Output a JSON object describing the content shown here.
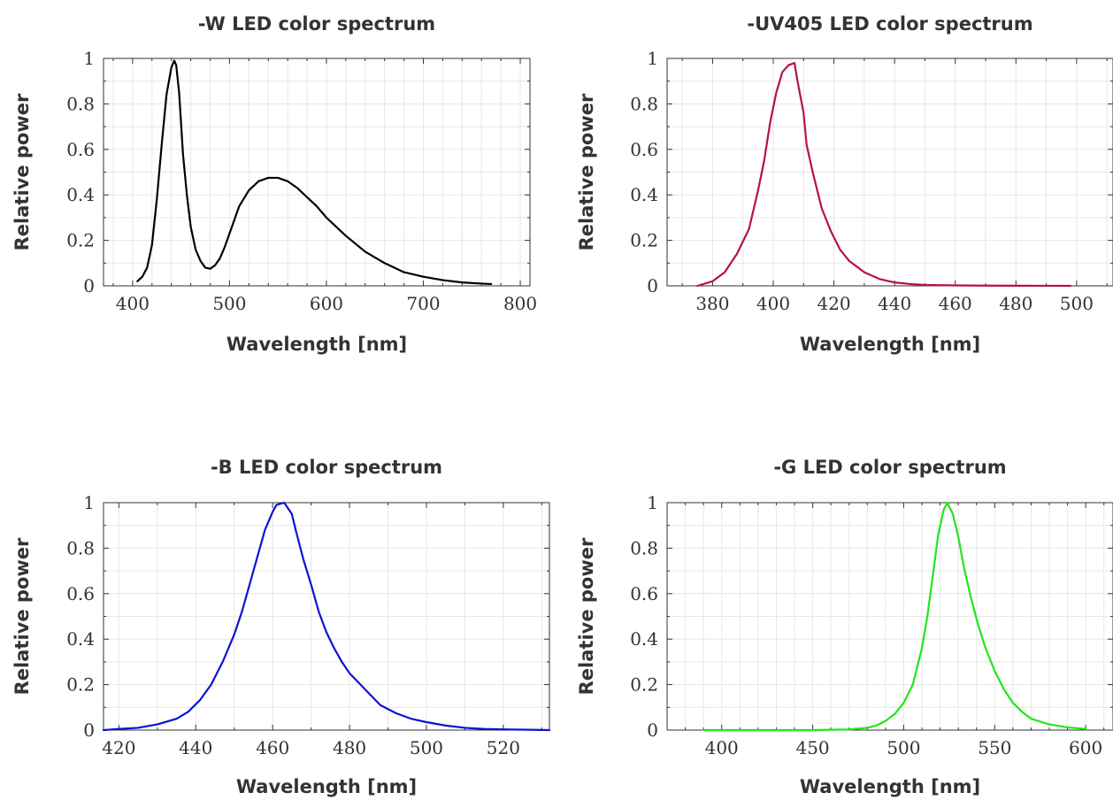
{
  "chart_data": [
    {
      "type": "line",
      "title": "-W LED color spectrum",
      "xlabel": "Wavelength [nm]",
      "ylabel": "Relative power",
      "xlim": [
        370,
        810
      ],
      "ylim": [
        0,
        1
      ],
      "xticks": [
        400,
        500,
        600,
        700,
        800
      ],
      "xtick_labels": [
        "400",
        "500",
        "600",
        "700",
        "800"
      ],
      "yticks": [
        0,
        0.2,
        0.4,
        0.6,
        0.8,
        1
      ],
      "ytick_labels": [
        "0",
        "0.2",
        "0.4",
        "0.6",
        "0.8",
        "1"
      ],
      "x_minor_step": 20,
      "y_minor_step": 0.1,
      "grid": true,
      "legend": "none",
      "color": "#000000",
      "series": [
        {
          "x": [
            405,
            410,
            415,
            420,
            425,
            430,
            435,
            440,
            443,
            445,
            448,
            452,
            456,
            460,
            465,
            470,
            475,
            480,
            485,
            490,
            495,
            500,
            510,
            520,
            530,
            540,
            550,
            560,
            570,
            580,
            590,
            600,
            620,
            640,
            660,
            680,
            700,
            720,
            740,
            760,
            770
          ],
          "y": [
            0.02,
            0.04,
            0.08,
            0.18,
            0.38,
            0.62,
            0.84,
            0.96,
            0.99,
            0.97,
            0.85,
            0.58,
            0.4,
            0.26,
            0.16,
            0.11,
            0.08,
            0.075,
            0.09,
            0.12,
            0.17,
            0.23,
            0.35,
            0.42,
            0.46,
            0.475,
            0.475,
            0.46,
            0.43,
            0.39,
            0.35,
            0.3,
            0.22,
            0.15,
            0.1,
            0.06,
            0.04,
            0.025,
            0.015,
            0.01,
            0.008
          ]
        }
      ]
    },
    {
      "type": "line",
      "title": "-UV405 LED color spectrum",
      "xlabel": "Wavelength [nm]",
      "ylabel": "Relative power",
      "xlim": [
        365,
        512
      ],
      "ylim": [
        0,
        1
      ],
      "xticks": [
        380,
        400,
        420,
        440,
        460,
        480,
        500
      ],
      "xtick_labels": [
        "380",
        "400",
        "420",
        "440",
        "460",
        "480",
        "500"
      ],
      "yticks": [
        0,
        0.2,
        0.4,
        0.6,
        0.8,
        1
      ],
      "ytick_labels": [
        "0",
        "0.2",
        "0.4",
        "0.6",
        "0.8",
        "1"
      ],
      "x_minor_step": 10,
      "y_minor_step": 0.1,
      "grid": true,
      "legend": "none",
      "color": "#b5104b",
      "series": [
        {
          "x": [
            375,
            380,
            384,
            388,
            392,
            395,
            397,
            399,
            401,
            403,
            405,
            407,
            408,
            410,
            411,
            413,
            416,
            419,
            422,
            425,
            430,
            435,
            440,
            445,
            450,
            460,
            470,
            480,
            490,
            498
          ],
          "y": [
            0.0,
            0.02,
            0.06,
            0.14,
            0.25,
            0.42,
            0.55,
            0.72,
            0.85,
            0.94,
            0.97,
            0.98,
            0.9,
            0.76,
            0.62,
            0.5,
            0.34,
            0.24,
            0.16,
            0.11,
            0.06,
            0.03,
            0.015,
            0.008,
            0.004,
            0.002,
            0.001,
            0.0005,
            0.0002,
            0.0
          ]
        }
      ]
    },
    {
      "type": "line",
      "title": "-B LED color spectrum",
      "xlabel": "Wavelength [nm]",
      "ylabel": "Relative power",
      "xlim": [
        416,
        532
      ],
      "ylim": [
        0,
        1
      ],
      "xticks": [
        420,
        440,
        460,
        480,
        500,
        520
      ],
      "xtick_labels": [
        "420",
        "440",
        "460",
        "480",
        "500",
        "520"
      ],
      "yticks": [
        0,
        0.2,
        0.4,
        0.6,
        0.8,
        1
      ],
      "ytick_labels": [
        "0",
        "0.2",
        "0.4",
        "0.6",
        "0.8",
        "1"
      ],
      "x_minor_step": 10,
      "y_minor_step": 0.1,
      "grid": true,
      "legend": "none",
      "color": "#0a14d4",
      "series": [
        {
          "x": [
            416,
            420,
            425,
            430,
            435,
            438,
            441,
            444,
            447,
            450,
            452,
            454,
            456,
            458,
            460,
            461,
            463,
            465,
            466,
            468,
            470,
            472,
            474,
            476,
            478,
            480,
            484,
            488,
            492,
            496,
            500,
            505,
            510,
            515,
            520,
            525,
            532
          ],
          "y": [
            0.0,
            0.005,
            0.01,
            0.025,
            0.05,
            0.08,
            0.13,
            0.2,
            0.3,
            0.42,
            0.52,
            0.64,
            0.76,
            0.88,
            0.96,
            0.99,
            1.0,
            0.95,
            0.88,
            0.75,
            0.64,
            0.52,
            0.43,
            0.36,
            0.3,
            0.25,
            0.18,
            0.11,
            0.075,
            0.05,
            0.035,
            0.02,
            0.01,
            0.005,
            0.003,
            0.002,
            0.0
          ]
        }
      ]
    },
    {
      "type": "line",
      "title": "-G LED color spectrum",
      "xlabel": "Wavelength [nm]",
      "ylabel": "Relative power",
      "xlim": [
        370,
        615
      ],
      "ylim": [
        0,
        1
      ],
      "xticks": [
        400,
        450,
        500,
        550,
        600
      ],
      "xtick_labels": [
        "400",
        "450",
        "500",
        "550",
        "600"
      ],
      "yticks": [
        0,
        0.2,
        0.4,
        0.6,
        0.8,
        1
      ],
      "ytick_labels": [
        "0",
        "0.2",
        "0.4",
        "0.6",
        "0.8",
        "1"
      ],
      "x_minor_step": 10,
      "y_minor_step": 0.1,
      "grid": true,
      "legend": "none",
      "color": "#22e61a",
      "series": [
        {
          "x": [
            390,
            420,
            450,
            470,
            480,
            485,
            490,
            495,
            500,
            505,
            510,
            513,
            516,
            519,
            522,
            524,
            527,
            530,
            533,
            537,
            541,
            545,
            550,
            555,
            560,
            565,
            570,
            580,
            590,
            600
          ],
          "y": [
            0.0,
            0.0,
            0.0,
            0.003,
            0.01,
            0.02,
            0.04,
            0.07,
            0.12,
            0.2,
            0.36,
            0.5,
            0.68,
            0.86,
            0.97,
            1.0,
            0.95,
            0.85,
            0.72,
            0.58,
            0.46,
            0.36,
            0.26,
            0.18,
            0.12,
            0.08,
            0.05,
            0.025,
            0.012,
            0.005
          ]
        }
      ]
    }
  ]
}
